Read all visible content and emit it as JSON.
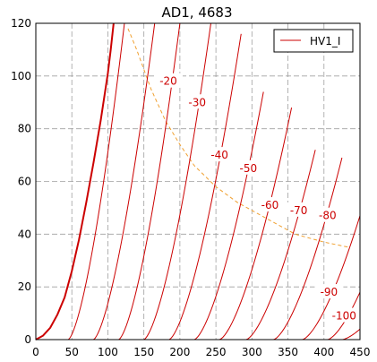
{
  "chart_data": {
    "type": "line",
    "title": "AD1, 4683",
    "xlabel": "",
    "ylabel": "",
    "xlim": [
      0,
      450
    ],
    "ylim": [
      0,
      120
    ],
    "x_ticks": [
      0,
      50,
      100,
      150,
      200,
      250,
      300,
      350,
      400,
      450
    ],
    "y_ticks": [
      0,
      20,
      40,
      60,
      80,
      100,
      120
    ],
    "grid": true,
    "legend": {
      "placement": "top-right",
      "entries": [
        "HV1_I"
      ]
    },
    "colors": {
      "curves": "#cc0000",
      "dissipation": "#f0a030",
      "grid": "#a0a0a0"
    },
    "zero_curve": {
      "name": "HV1_I",
      "points": [
        [
          0,
          0
        ],
        [
          10,
          1.5
        ],
        [
          20,
          4.5
        ],
        [
          30,
          9.5
        ],
        [
          40,
          16
        ],
        [
          50,
          26
        ],
        [
          60,
          38
        ],
        [
          70,
          52
        ],
        [
          80,
          67
        ],
        [
          90,
          83
        ],
        [
          100,
          101
        ],
        [
          104,
          110
        ],
        [
          108,
          120
        ]
      ]
    },
    "curve_labels": [
      {
        "text": "-20",
        "x": 184,
        "y": 98
      },
      {
        "text": "-30",
        "x": 224,
        "y": 90
      },
      {
        "text": "-40",
        "x": 255,
        "y": 70
      },
      {
        "text": "-50",
        "x": 295,
        "y": 65
      },
      {
        "text": "-60",
        "x": 325,
        "y": 51
      },
      {
        "text": "-70",
        "x": 365,
        "y": 49
      },
      {
        "text": "-80",
        "x": 405,
        "y": 47
      },
      {
        "text": "-90",
        "x": 407,
        "y": 18
      },
      {
        "text": "-100",
        "x": 428,
        "y": 9
      }
    ],
    "grid_curves": [
      {
        "x0": 45,
        "x_end": 123,
        "y_end": 120
      },
      {
        "x0": 80,
        "x_end": 165,
        "y_end": 120
      },
      {
        "x0": 115,
        "x_end": 200,
        "y_end": 120
      },
      {
        "x0": 150,
        "x_end": 243,
        "y_end": 120
      },
      {
        "x0": 185,
        "x_end": 285,
        "y_end": 116
      },
      {
        "x0": 220,
        "x_end": 316,
        "y_end": 94
      },
      {
        "x0": 255,
        "x_end": 355,
        "y_end": 88
      },
      {
        "x0": 292,
        "x_end": 388,
        "y_end": 72
      },
      {
        "x0": 330,
        "x_end": 425,
        "y_end": 69
      },
      {
        "x0": 370,
        "x_end": 450,
        "y_end": 47
      },
      {
        "x0": 405,
        "x_end": 450,
        "y_end": 18
      },
      {
        "x0": 425,
        "x_end": 450,
        "y_end": 4
      }
    ],
    "dissipation_curve": [
      [
        128,
        118
      ],
      [
        140,
        110
      ],
      [
        160,
        95
      ],
      [
        180,
        83
      ],
      [
        200,
        74
      ],
      [
        220,
        66
      ],
      [
        250,
        58
      ],
      [
        280,
        52
      ],
      [
        320,
        46
      ],
      [
        360,
        40
      ],
      [
        400,
        37
      ],
      [
        435,
        35
      ]
    ]
  }
}
